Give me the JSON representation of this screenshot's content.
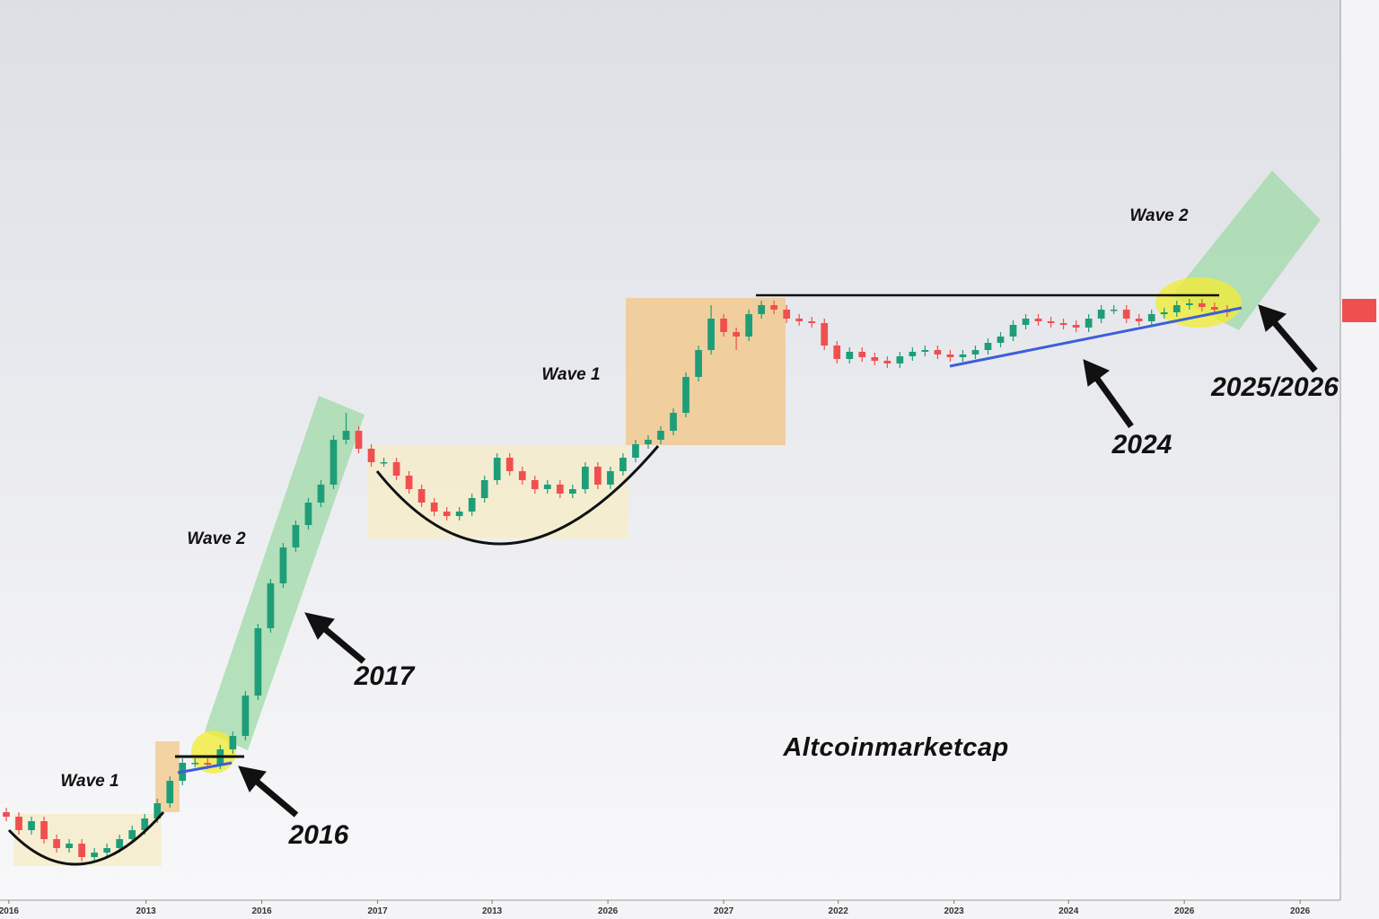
{
  "chart_data": {
    "type": "candlestick",
    "watermark": "Altcoinmarketcap",
    "annotations": [
      "Wave 1",
      "Wave 2",
      "2017",
      "2016",
      "Wave 1",
      "Wave 2",
      "2024",
      "2025/2026"
    ],
    "up_color": "#1e9e78",
    "down_color": "#ef4f4f",
    "xlim": [
      -0.5,
      106
    ],
    "xticks": [
      {
        "value": 0.2,
        "label": "2016"
      },
      {
        "value": 11.1,
        "label": "2013"
      },
      {
        "value": 20.3,
        "label": "2016"
      },
      {
        "value": 29.5,
        "label": "2017"
      },
      {
        "value": 38.6,
        "label": "2013"
      },
      {
        "value": 47.8,
        "label": "2026"
      },
      {
        "value": 57.0,
        "label": "2027"
      },
      {
        "value": 66.1,
        "label": "2022"
      },
      {
        "value": 75.3,
        "label": "2023"
      },
      {
        "value": 84.4,
        "label": "2024"
      },
      {
        "value": 93.6,
        "label": "2026"
      },
      {
        "value": 102.8,
        "label": "2026"
      }
    ],
    "ylim": [
      0,
      1000
    ],
    "candles": [
      [
        95,
        100,
        85,
        90
      ],
      [
        90,
        95,
        70,
        75
      ],
      [
        75,
        90,
        70,
        85
      ],
      [
        85,
        90,
        60,
        65
      ],
      [
        65,
        70,
        50,
        55
      ],
      [
        55,
        65,
        50,
        60
      ],
      [
        60,
        65,
        40,
        45
      ],
      [
        45,
        55,
        40,
        50
      ],
      [
        50,
        60,
        45,
        55
      ],
      [
        55,
        70,
        50,
        65
      ],
      [
        65,
        80,
        60,
        75
      ],
      [
        75,
        93,
        70,
        88
      ],
      [
        88,
        110,
        83,
        105
      ],
      [
        105,
        135,
        100,
        130
      ],
      [
        130,
        155,
        125,
        150
      ],
      [
        150,
        155,
        145,
        150
      ],
      [
        150,
        155,
        143,
        148
      ],
      [
        148,
        170,
        143,
        165
      ],
      [
        165,
        185,
        160,
        180
      ],
      [
        180,
        230,
        175,
        225
      ],
      [
        225,
        305,
        220,
        300
      ],
      [
        300,
        355,
        295,
        350
      ],
      [
        350,
        395,
        345,
        390
      ],
      [
        390,
        420,
        385,
        415
      ],
      [
        415,
        445,
        410,
        440
      ],
      [
        440,
        465,
        435,
        460
      ],
      [
        460,
        515,
        455,
        510
      ],
      [
        510,
        540,
        505,
        520
      ],
      [
        520,
        525,
        495,
        500
      ],
      [
        500,
        505,
        480,
        485
      ],
      [
        485,
        490,
        480,
        485
      ],
      [
        485,
        490,
        465,
        470
      ],
      [
        470,
        475,
        450,
        455
      ],
      [
        455,
        460,
        435,
        440
      ],
      [
        440,
        445,
        425,
        430
      ],
      [
        430,
        435,
        420,
        425
      ],
      [
        425,
        435,
        420,
        430
      ],
      [
        430,
        450,
        425,
        445
      ],
      [
        445,
        470,
        440,
        465
      ],
      [
        465,
        495,
        460,
        490
      ],
      [
        490,
        495,
        470,
        475
      ],
      [
        475,
        480,
        460,
        465
      ],
      [
        465,
        470,
        450,
        455
      ],
      [
        455,
        465,
        450,
        460
      ],
      [
        460,
        465,
        445,
        450
      ],
      [
        450,
        460,
        445,
        455
      ],
      [
        455,
        485,
        450,
        480
      ],
      [
        480,
        485,
        455,
        460
      ],
      [
        460,
        480,
        455,
        475
      ],
      [
        475,
        495,
        470,
        490
      ],
      [
        490,
        510,
        485,
        505
      ],
      [
        505,
        515,
        500,
        510
      ],
      [
        510,
        525,
        505,
        520
      ],
      [
        520,
        545,
        515,
        540
      ],
      [
        540,
        585,
        535,
        580
      ],
      [
        580,
        615,
        575,
        610
      ],
      [
        610,
        660,
        605,
        645
      ],
      [
        645,
        650,
        625,
        630
      ],
      [
        630,
        635,
        610,
        625
      ],
      [
        625,
        655,
        620,
        650
      ],
      [
        650,
        665,
        645,
        660
      ],
      [
        660,
        665,
        650,
        655
      ],
      [
        655,
        660,
        640,
        645
      ],
      [
        645,
        650,
        637,
        642
      ],
      [
        642,
        647,
        635,
        640
      ],
      [
        640,
        645,
        610,
        615
      ],
      [
        615,
        620,
        595,
        600
      ],
      [
        600,
        613,
        595,
        608
      ],
      [
        608,
        613,
        597,
        602
      ],
      [
        602,
        607,
        593,
        598
      ],
      [
        598,
        603,
        590,
        595
      ],
      [
        595,
        608,
        590,
        603
      ],
      [
        603,
        613,
        598,
        608
      ],
      [
        608,
        615,
        603,
        610
      ],
      [
        610,
        615,
        600,
        605
      ],
      [
        605,
        610,
        597,
        602
      ],
      [
        602,
        610,
        597,
        605
      ],
      [
        605,
        615,
        600,
        610
      ],
      [
        610,
        623,
        605,
        618
      ],
      [
        618,
        630,
        613,
        625
      ],
      [
        625,
        643,
        620,
        638
      ],
      [
        638,
        650,
        633,
        645
      ],
      [
        645,
        650,
        637,
        642
      ],
      [
        642,
        647,
        635,
        640
      ],
      [
        640,
        645,
        633,
        638
      ],
      [
        638,
        643,
        630,
        635
      ],
      [
        635,
        650,
        630,
        645
      ],
      [
        645,
        660,
        640,
        655
      ],
      [
        655,
        660,
        650,
        655
      ],
      [
        655,
        660,
        640,
        645
      ],
      [
        645,
        650,
        637,
        642
      ],
      [
        642,
        655,
        637,
        650
      ],
      [
        650,
        657,
        645,
        652
      ],
      [
        652,
        665,
        647,
        660
      ],
      [
        660,
        667,
        655,
        662
      ],
      [
        662,
        667,
        653,
        658
      ],
      [
        658,
        663,
        650,
        655
      ],
      [
        655,
        660,
        647,
        652
      ]
    ]
  }
}
